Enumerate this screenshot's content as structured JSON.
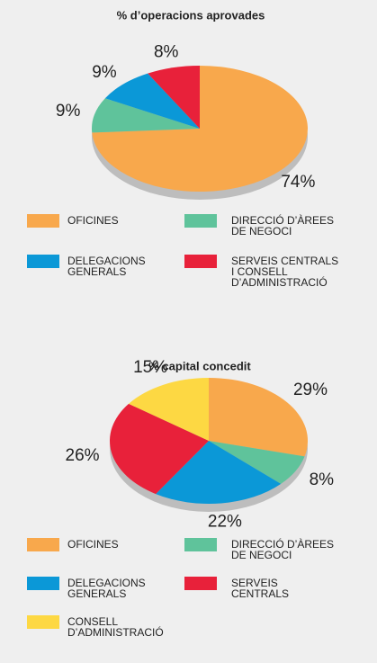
{
  "chart_data": [
    {
      "type": "pie",
      "title": "% d’operacions aprovades",
      "categories": [
        "OFICINES",
        "DIRECCIÓ D’ÀREES\nDE NEGOCI",
        "DELEGACIONS\nGENERALS",
        "SERVEIS CENTRALS\nI CONSELL\nD’ADMINISTRACIÓ"
      ],
      "values": [
        74,
        9,
        9,
        8
      ],
      "value_labels": [
        "74%",
        "9%",
        "9%",
        "8%"
      ],
      "colors": [
        "#f8a84c",
        "#5fc39b",
        "#0b98d7",
        "#e8213a"
      ]
    },
    {
      "type": "pie",
      "title": "% capital concedit",
      "categories": [
        "OFICINES",
        "DIRECCIÓ D’ÀREES\nDE NEGOCI",
        "DELEGACIONS\nGENERALS",
        "SERVEIS\nCENTRALS",
        "CONSELL\nD’ADMINISTRACIÓ"
      ],
      "values": [
        29,
        8,
        22,
        26,
        15
      ],
      "value_labels": [
        "29%",
        "8%",
        "22%",
        "26%",
        "15%"
      ],
      "colors": [
        "#f8a84c",
        "#5fc39b",
        "#0b98d7",
        "#e8213a",
        "#fdd843"
      ]
    }
  ]
}
